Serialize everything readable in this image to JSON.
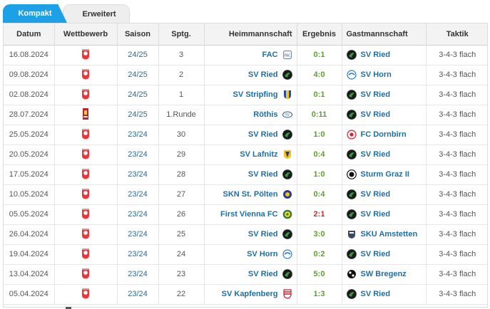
{
  "tabs": [
    {
      "label": "Kompakt",
      "active": true
    },
    {
      "label": "Erweitert",
      "active": false
    }
  ],
  "columns": [
    "Datum",
    "Wettbewerb",
    "Saison",
    "Sptg.",
    "Heimmannschaft",
    "Ergebnis",
    "Gastmannschaft",
    "Taktik"
  ],
  "colors": {
    "accent": "#1da1e6",
    "link": "#1d6fa5",
    "win": "#5aa02c",
    "loss": "#d12b2b"
  },
  "rows": [
    {
      "date": "16.08.2024",
      "comp_icon": "2-liga-logo-icon",
      "season": "24/25",
      "matchday": "3",
      "home": "FAC",
      "home_icon": "fac-crest-icon",
      "result": "0:1",
      "result_type": "win",
      "away": "SV Ried",
      "away_icon": "sv-ried-crest-icon",
      "tactic": "3-4-3 flach"
    },
    {
      "date": "09.08.2024",
      "comp_icon": "2-liga-logo-icon",
      "season": "24/25",
      "matchday": "2",
      "home": "SV Ried",
      "home_icon": "sv-ried-crest-icon",
      "result": "4:0",
      "result_type": "win",
      "away": "SV Horn",
      "away_icon": "sv-horn-crest-icon",
      "tactic": "3-4-3 flach"
    },
    {
      "date": "02.08.2024",
      "comp_icon": "2-liga-logo-icon",
      "season": "24/25",
      "matchday": "1",
      "home": "SV Stripfing",
      "home_icon": "sv-stripfing-crest-icon",
      "result": "0:1",
      "result_type": "win",
      "away": "SV Ried",
      "away_icon": "sv-ried-crest-icon",
      "tactic": "3-4-3 flach"
    },
    {
      "date": "28.07.2024",
      "comp_icon": "oefb-cup-logo-icon",
      "season": "24/25",
      "matchday": "1.Runde",
      "home": "Röthis",
      "home_icon": "roethis-crest-icon",
      "result": "0:11",
      "result_type": "win",
      "away": "SV Ried",
      "away_icon": "sv-ried-crest-icon",
      "tactic": "3-4-3 flach"
    },
    {
      "date": "25.05.2024",
      "comp_icon": "2-liga-logo-icon",
      "season": "23/24",
      "matchday": "30",
      "home": "SV Ried",
      "home_icon": "sv-ried-crest-icon",
      "result": "1:0",
      "result_type": "win",
      "away": "FC Dornbirn",
      "away_icon": "fc-dornbirn-crest-icon",
      "tactic": "3-4-3 flach"
    },
    {
      "date": "20.05.2024",
      "comp_icon": "2-liga-logo-icon",
      "season": "23/24",
      "matchday": "29",
      "home": "SV Lafnitz",
      "home_icon": "sv-lafnitz-crest-icon",
      "result": "0:4",
      "result_type": "win",
      "away": "SV Ried",
      "away_icon": "sv-ried-crest-icon",
      "tactic": "3-4-3 flach"
    },
    {
      "date": "17.05.2024",
      "comp_icon": "2-liga-logo-icon",
      "season": "23/24",
      "matchday": "28",
      "home": "SV Ried",
      "home_icon": "sv-ried-crest-icon",
      "result": "1:0",
      "result_type": "win",
      "away": "Sturm Graz II",
      "away_icon": "sturm-graz-crest-icon",
      "tactic": "3-4-3 flach"
    },
    {
      "date": "10.05.2024",
      "comp_icon": "2-liga-logo-icon",
      "season": "23/24",
      "matchday": "27",
      "home": "SKN St. Pölten",
      "home_icon": "skn-st-poelten-crest-icon",
      "result": "0:4",
      "result_type": "win",
      "away": "SV Ried",
      "away_icon": "sv-ried-crest-icon",
      "tactic": "3-4-3 flach"
    },
    {
      "date": "05.05.2024",
      "comp_icon": "2-liga-logo-icon",
      "season": "23/24",
      "matchday": "26",
      "home": "First Vienna FC",
      "home_icon": "first-vienna-crest-icon",
      "result": "2:1",
      "result_type": "loss",
      "away": "SV Ried",
      "away_icon": "sv-ried-crest-icon",
      "tactic": "3-4-3 flach"
    },
    {
      "date": "26.04.2024",
      "comp_icon": "2-liga-logo-icon",
      "season": "23/24",
      "matchday": "25",
      "home": "SV Ried",
      "home_icon": "sv-ried-crest-icon",
      "result": "3:0",
      "result_type": "win",
      "away": "SKU Amstetten",
      "away_icon": "sku-amstetten-crest-icon",
      "tactic": "3-4-3 flach"
    },
    {
      "date": "19.04.2024",
      "comp_icon": "2-liga-logo-icon",
      "season": "23/24",
      "matchday": "24",
      "home": "SV Horn",
      "home_icon": "sv-horn-crest-icon",
      "result": "0:2",
      "result_type": "win",
      "away": "SV Ried",
      "away_icon": "sv-ried-crest-icon",
      "tactic": "3-4-3 flach"
    },
    {
      "date": "13.04.2024",
      "comp_icon": "2-liga-logo-icon",
      "season": "23/24",
      "matchday": "23",
      "home": "SV Ried",
      "home_icon": "sv-ried-crest-icon",
      "result": "5:0",
      "result_type": "win",
      "away": "SW Bregenz",
      "away_icon": "sw-bregenz-crest-icon",
      "tactic": "3-4-3 flach"
    },
    {
      "date": "05.04.2024",
      "comp_icon": "2-liga-logo-icon",
      "season": "23/24",
      "matchday": "22",
      "home": "SV Kapfenberg",
      "home_icon": "sv-kapfenberg-crest-icon",
      "result": "1:3",
      "result_type": "win",
      "away": "SV Ried",
      "away_icon": "sv-ried-crest-icon",
      "tactic": "3-4-3 flach"
    }
  ]
}
